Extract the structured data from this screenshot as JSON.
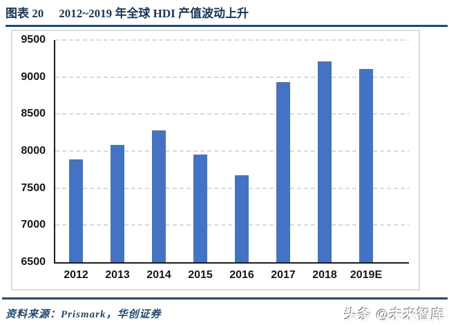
{
  "title": {
    "label": "图表 20",
    "text": "2012~2019 年全球 HDI 产值波动上升"
  },
  "footer": {
    "source_text": "资料来源：Prismark，华创证券",
    "watermark": "头条 @未来智库"
  },
  "colors": {
    "navy_text": "#17365D",
    "rule_blue": "#1F4876",
    "bar_blue": "#4472C4",
    "gridline_gray": "#D9D9D9",
    "axis_black": "#1A1A1A",
    "frame_gray": "#DCDCDC"
  },
  "chart_data": {
    "type": "bar",
    "title": "",
    "xlabel": "",
    "ylabel": "",
    "categories": [
      "2012",
      "2013",
      "2014",
      "2015",
      "2016",
      "2017",
      "2018",
      "2019E"
    ],
    "values": [
      7890,
      8080,
      8280,
      7950,
      7670,
      8930,
      9210,
      9110
    ],
    "ylim": [
      6500,
      9500
    ],
    "yticks": [
      6500,
      7000,
      7500,
      8000,
      8500,
      9000,
      9500
    ],
    "grid": "horizontal-dashed",
    "legend": "none",
    "bar_color": "#4472C4"
  }
}
